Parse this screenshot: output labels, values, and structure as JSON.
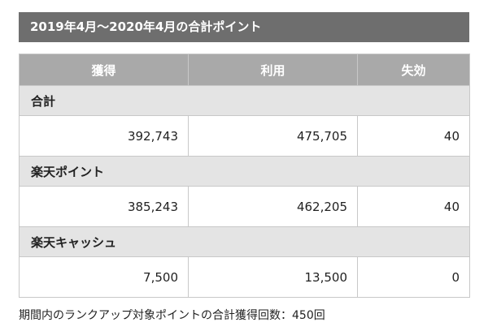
{
  "header": {
    "title": "2019年4月〜2020年4月の合計ポイント"
  },
  "table": {
    "columns": [
      "獲得",
      "利用",
      "失効"
    ],
    "sections": [
      {
        "label": "合計",
        "values": [
          "392,743",
          "475,705",
          "40"
        ]
      },
      {
        "label": "楽天ポイント",
        "values": [
          "385,243",
          "462,205",
          "40"
        ]
      },
      {
        "label": "楽天キャッシュ",
        "values": [
          "7,500",
          "13,500",
          "0"
        ]
      }
    ]
  },
  "footnote": "期間内のランクアップ対象ポイントの合計獲得回数：450回",
  "colors": {
    "header_bg": "#6e6e6e",
    "column_header_bg": "#a9a9a9",
    "section_bg": "#e4e4e4",
    "border": "#c8c8c8"
  }
}
